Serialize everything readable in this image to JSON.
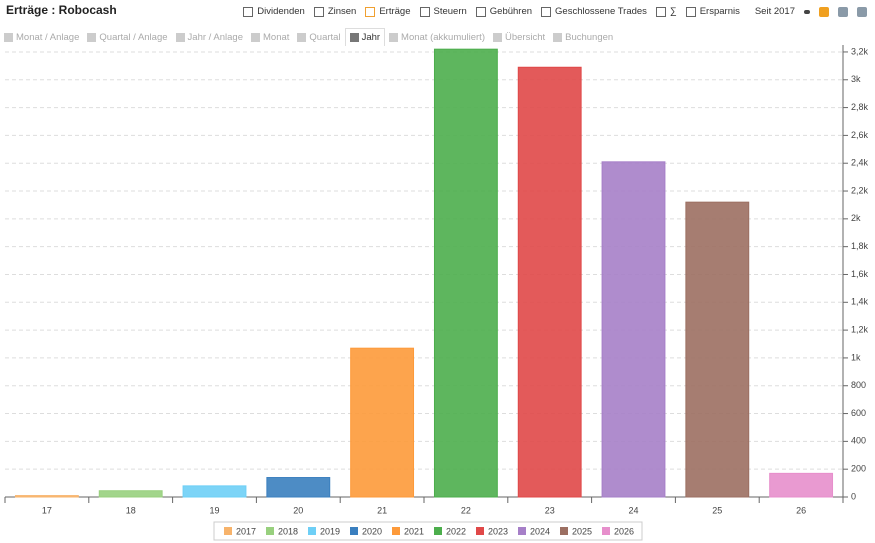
{
  "header": {
    "title": "Erträge : Robocash",
    "filters": [
      "Dividenden",
      "Zinsen",
      "Erträge",
      "Steuern",
      "Gebühren",
      "Geschlossene Trades",
      "∑",
      "Ersparnis"
    ],
    "period": "Seit 2017"
  },
  "tabs": [
    "Monat / Anlage",
    "Quartal / Anlage",
    "Jahr / Anlage",
    "Monat",
    "Quartal",
    "Jahr",
    "Monat (akkumuliert)",
    "Übersicht",
    "Buchungen"
  ],
  "chart_data": {
    "type": "bar",
    "categories": [
      "17",
      "18",
      "19",
      "20",
      "21",
      "22",
      "23",
      "24",
      "25",
      "26"
    ],
    "series": [
      {
        "name": "2017",
        "color": "#f7b36b",
        "values": [
          10,
          null,
          null,
          null,
          null,
          null,
          null,
          null,
          null,
          null
        ]
      },
      {
        "name": "2018",
        "color": "#98d07e",
        "values": [
          null,
          45,
          null,
          null,
          null,
          null,
          null,
          null,
          null,
          null
        ]
      },
      {
        "name": "2019",
        "color": "#6ecff6",
        "values": [
          null,
          null,
          80,
          null,
          null,
          null,
          null,
          null,
          null,
          null
        ]
      },
      {
        "name": "2020",
        "color": "#3a7fbf",
        "values": [
          null,
          null,
          null,
          140,
          null,
          null,
          null,
          null,
          null,
          null
        ]
      },
      {
        "name": "2021",
        "color": "#fd9a3a",
        "values": [
          null,
          null,
          null,
          null,
          1070,
          null,
          null,
          null,
          null,
          null
        ]
      },
      {
        "name": "2022",
        "color": "#4cae4c",
        "values": [
          null,
          null,
          null,
          null,
          null,
          3220,
          null,
          null,
          null,
          null
        ]
      },
      {
        "name": "2023",
        "color": "#e04848",
        "values": [
          null,
          null,
          null,
          null,
          null,
          null,
          3090,
          null,
          null,
          null
        ]
      },
      {
        "name": "2024",
        "color": "#a67fc8",
        "values": [
          null,
          null,
          null,
          null,
          null,
          null,
          null,
          2410,
          null,
          null
        ]
      },
      {
        "name": "2025",
        "color": "#9c6f62",
        "values": [
          null,
          null,
          null,
          null,
          null,
          null,
          null,
          null,
          2120,
          null
        ]
      },
      {
        "name": "2026",
        "color": "#e78fcc",
        "values": [
          null,
          null,
          null,
          null,
          null,
          null,
          null,
          null,
          null,
          170
        ]
      }
    ],
    "ylim": [
      0,
      3250
    ],
    "yticks": [
      0,
      200,
      400,
      600,
      800,
      {
        "value": 1000,
        "label": "1k"
      },
      {
        "value": 1200,
        "label": "1,2k"
      },
      {
        "value": 1400,
        "label": "1,4k"
      },
      {
        "value": 1600,
        "label": "1,6k"
      },
      {
        "value": 1800,
        "label": "1,8k"
      },
      {
        "value": 2000,
        "label": "2k"
      },
      {
        "value": 2200,
        "label": "2,2k"
      },
      {
        "value": 2400,
        "label": "2,4k"
      },
      {
        "value": 2600,
        "label": "2,6k"
      },
      {
        "value": 2800,
        "label": "2,8k"
      },
      {
        "value": 3000,
        "label": "3k"
      },
      {
        "value": 3200,
        "label": "3,2k"
      }
    ],
    "grid": true,
    "legend": "bottom"
  }
}
